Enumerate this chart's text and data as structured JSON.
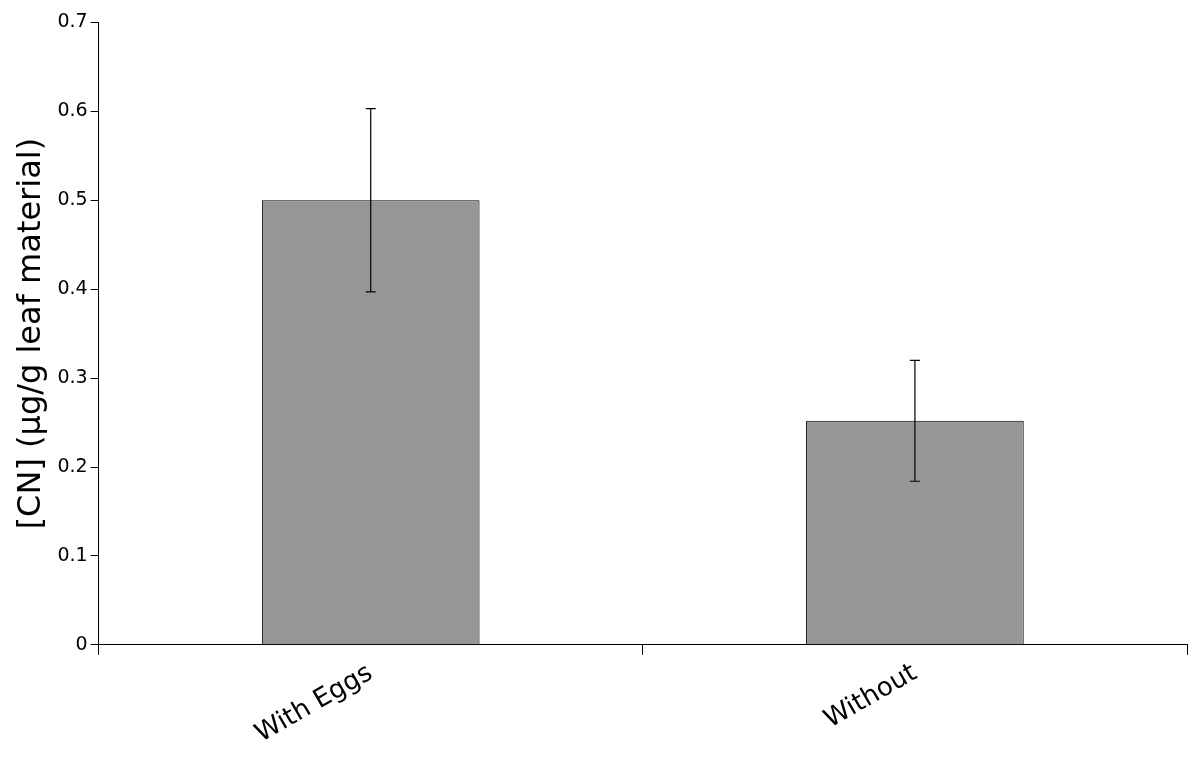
{
  "chart_data": {
    "type": "bar",
    "ylabel": "[CN] (µg/g leaf material)",
    "categories": [
      "With Eggs",
      "Without"
    ],
    "values": [
      0.5,
      0.252
    ],
    "errors": [
      0.103,
      0.068
    ],
    "color": "#969696",
    "ylim": [
      0,
      0.7
    ],
    "yticks": [
      0,
      0.1,
      0.2,
      0.3,
      0.4,
      0.5,
      0.6,
      0.7
    ],
    "grid": false,
    "legend": false
  }
}
